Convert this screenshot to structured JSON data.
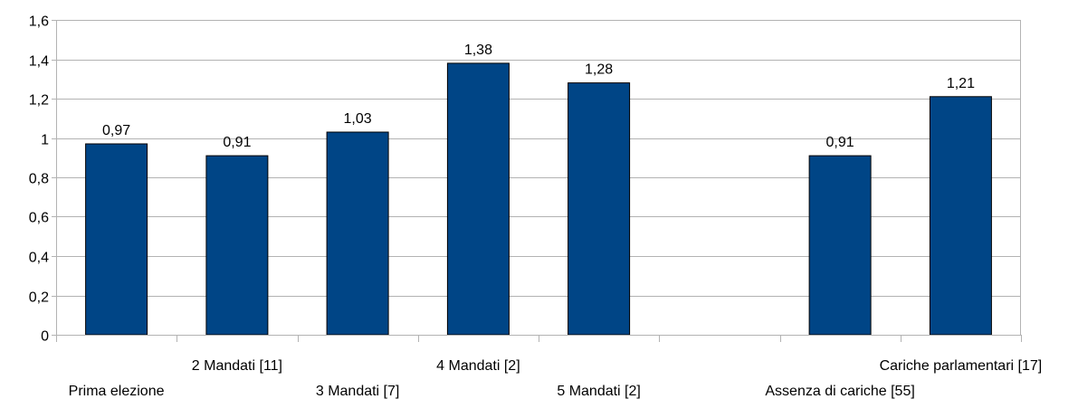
{
  "chart_data": {
    "type": "bar",
    "title": "",
    "xlabel": "",
    "ylabel": "",
    "ylim": [
      0,
      1.6
    ],
    "yticks": [
      "0",
      "0,2",
      "0,4",
      "0,6",
      "0,8",
      "1",
      "1,2",
      "1,4",
      "1,6"
    ],
    "grid": true,
    "legend": "none",
    "categories": [
      "Prima elezione",
      "2 Mandati [11]",
      "3 Mandati [7]",
      "4 Mandati [2]",
      "5 Mandati [2]",
      "",
      "Assenza di cariche [55]",
      "Cariche parlamentari [17]"
    ],
    "values": [
      0.97,
      0.91,
      1.03,
      1.38,
      1.28,
      null,
      0.91,
      1.21
    ],
    "value_labels": [
      "0,97",
      "0,91",
      "1,03",
      "1,38",
      "1,28",
      "",
      "0,91",
      "1,21"
    ],
    "colors": {
      "bar": "#004586",
      "grid": "#b3b3b3",
      "axis": "#b3b3b3"
    }
  }
}
